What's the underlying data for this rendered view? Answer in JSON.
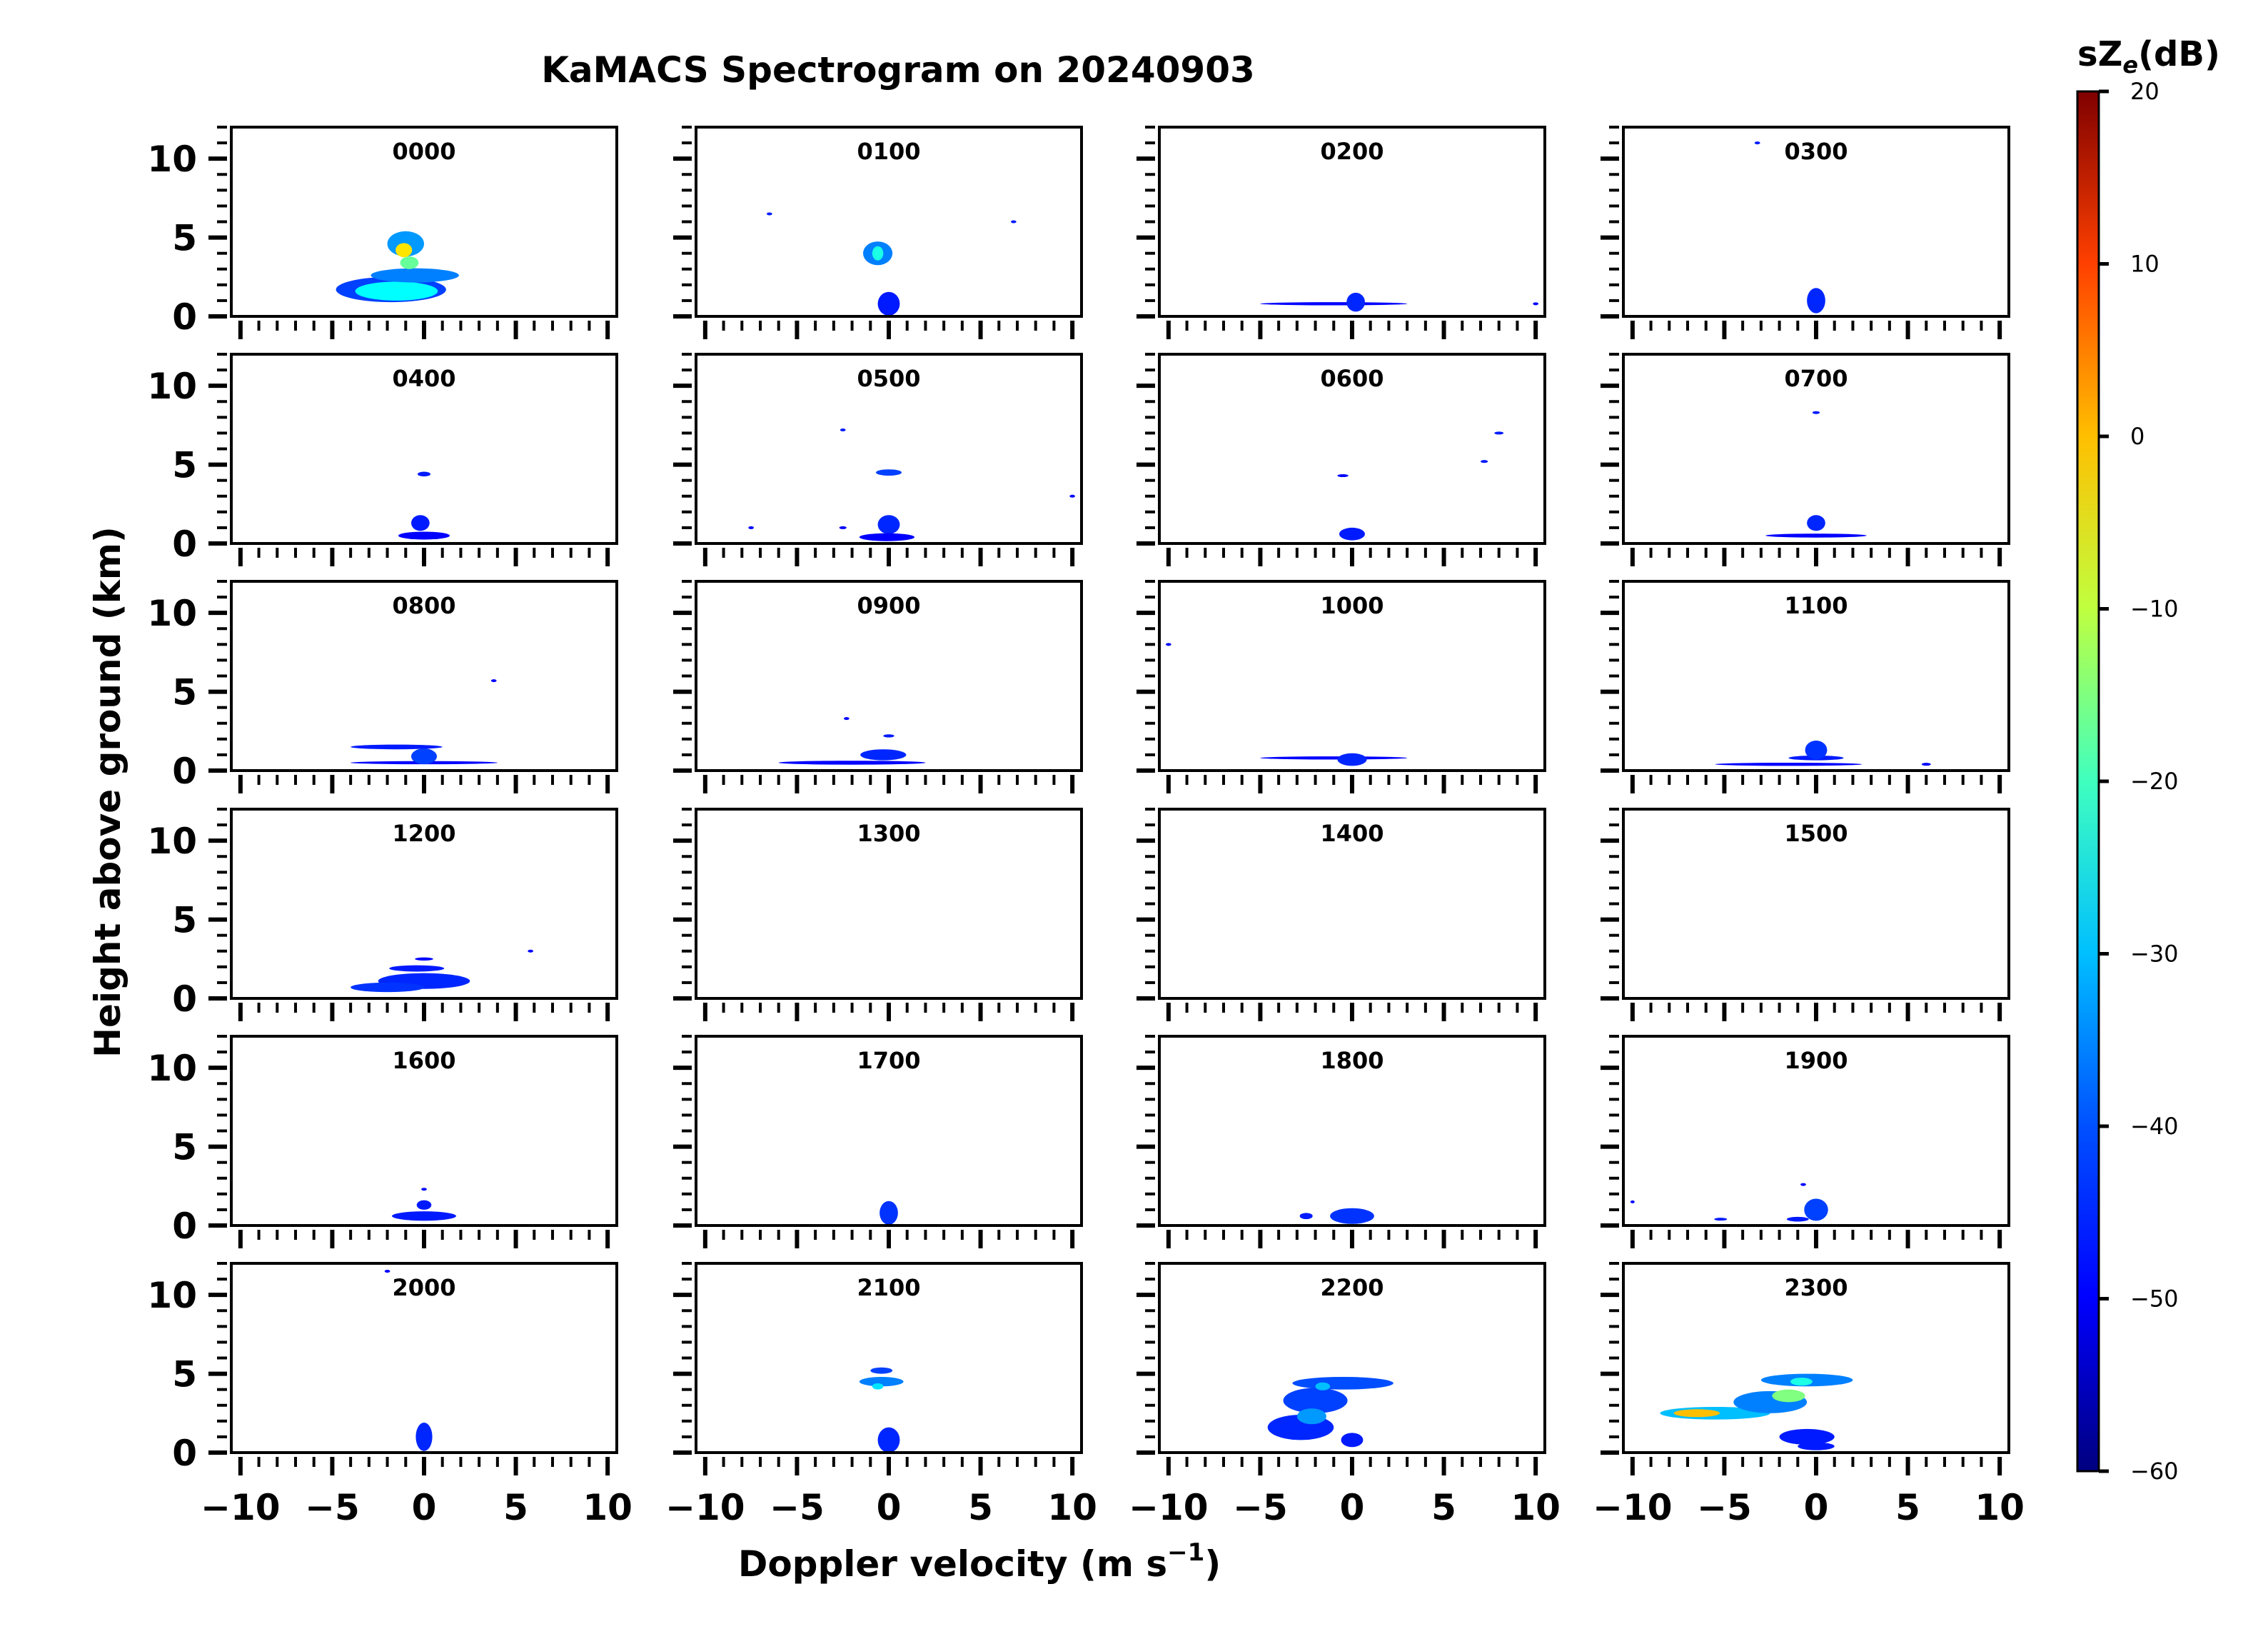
{
  "chart_data": {
    "type": "heatmap",
    "title": "KaMACS Spectrogram on 20240903",
    "xlabel": "Doppler velocity (m s",
    "xlabel_sup": "−1",
    "xlabel_close": ")",
    "ylabel": "Height above ground (km)",
    "xlim": [
      -10.5,
      10.5
    ],
    "ylim": [
      0,
      12
    ],
    "x_ticks": [
      -10,
      -5,
      0,
      5,
      10
    ],
    "x_tick_labels": [
      "−10",
      "−5",
      "0",
      "5",
      "10"
    ],
    "y_ticks": [
      0,
      5,
      10
    ],
    "y_tick_labels": [
      "0",
      "5",
      "10"
    ],
    "colorbar": {
      "label_prefix": "sZ",
      "label_sub": "e",
      "label_suffix": "(dB)",
      "range": [
        -60,
        20
      ],
      "ticks": [
        20,
        10,
        0,
        -10,
        -20,
        -30,
        -40,
        -50,
        -60
      ],
      "tick_labels": [
        "20",
        "10",
        "0",
        "−10",
        "−20",
        "−30",
        "−40",
        "−50",
        "−60"
      ],
      "colormap": "jet",
      "colors": [
        "#00007f",
        "#0000ff",
        "#007fff",
        "#00ffff",
        "#7fff7f",
        "#ffff00",
        "#ff7f00",
        "#ff0000",
        "#7f0000"
      ]
    },
    "panels": [
      {
        "time": "0000",
        "blobs": [
          {
            "x": -1.8,
            "y": 1.7,
            "w": 6.0,
            "h": 1.6,
            "dbz": -45
          },
          {
            "x": -1.5,
            "y": 1.6,
            "w": 4.5,
            "h": 1.2,
            "dbz": -30
          },
          {
            "x": -0.5,
            "y": 2.6,
            "w": 4.8,
            "h": 0.9,
            "dbz": -40
          },
          {
            "x": -1.0,
            "y": 4.6,
            "w": 2.0,
            "h": 1.6,
            "dbz": -38
          },
          {
            "x": -1.1,
            "y": 4.2,
            "w": 0.9,
            "h": 0.9,
            "dbz": -8
          },
          {
            "x": -0.8,
            "y": 3.4,
            "w": 1.0,
            "h": 0.8,
            "dbz": -22
          }
        ]
      },
      {
        "time": "0100",
        "blobs": [
          {
            "x": -0.6,
            "y": 4.0,
            "w": 1.6,
            "h": 1.5,
            "dbz": -40
          },
          {
            "x": -0.6,
            "y": 4.0,
            "w": 0.6,
            "h": 0.9,
            "dbz": -28
          },
          {
            "x": 0.0,
            "y": 0.8,
            "w": 1.2,
            "h": 1.5,
            "dbz": -48
          },
          {
            "x": -6.5,
            "y": 6.5,
            "w": 0.3,
            "h": 0.12,
            "dbz": -48
          },
          {
            "x": 6.8,
            "y": 6.0,
            "w": 0.3,
            "h": 0.12,
            "dbz": -48
          }
        ]
      },
      {
        "time": "0200",
        "blobs": [
          {
            "x": -1.0,
            "y": 0.8,
            "w": 8.0,
            "h": 0.2,
            "dbz": -50
          },
          {
            "x": 0.2,
            "y": 0.9,
            "w": 1.0,
            "h": 1.2,
            "dbz": -47
          },
          {
            "x": 10.0,
            "y": 0.8,
            "w": 0.3,
            "h": 0.15,
            "dbz": -50
          }
        ]
      },
      {
        "time": "0300",
        "blobs": [
          {
            "x": 0.0,
            "y": 1.0,
            "w": 1.0,
            "h": 1.6,
            "dbz": -47
          },
          {
            "x": -3.2,
            "y": 11.0,
            "w": 0.3,
            "h": 0.15,
            "dbz": -48
          }
        ]
      },
      {
        "time": "0400",
        "blobs": [
          {
            "x": 0.0,
            "y": 4.4,
            "w": 0.7,
            "h": 0.3,
            "dbz": -48
          },
          {
            "x": -0.2,
            "y": 1.3,
            "w": 1.0,
            "h": 1.0,
            "dbz": -48
          },
          {
            "x": 0.0,
            "y": 0.5,
            "w": 2.8,
            "h": 0.5,
            "dbz": -50
          }
        ]
      },
      {
        "time": "0500",
        "blobs": [
          {
            "x": 0.0,
            "y": 4.5,
            "w": 1.4,
            "h": 0.4,
            "dbz": -45
          },
          {
            "x": -2.5,
            "y": 7.2,
            "w": 0.3,
            "h": 0.12,
            "dbz": -48
          },
          {
            "x": 0.0,
            "y": 1.2,
            "w": 1.2,
            "h": 1.2,
            "dbz": -47
          },
          {
            "x": -0.1,
            "y": 0.4,
            "w": 3.0,
            "h": 0.5,
            "dbz": -50
          },
          {
            "x": -7.5,
            "y": 1.0,
            "w": 0.3,
            "h": 0.12,
            "dbz": -50
          },
          {
            "x": 10.0,
            "y": 3.0,
            "w": 0.3,
            "h": 0.12,
            "dbz": -50
          },
          {
            "x": -2.5,
            "y": 1.0,
            "w": 0.4,
            "h": 0.12,
            "dbz": -50
          }
        ]
      },
      {
        "time": "0600",
        "blobs": [
          {
            "x": 0.0,
            "y": 0.6,
            "w": 1.4,
            "h": 0.8,
            "dbz": -48
          },
          {
            "x": 8.0,
            "y": 7.0,
            "w": 0.5,
            "h": 0.15,
            "dbz": -48
          },
          {
            "x": 7.2,
            "y": 5.2,
            "w": 0.4,
            "h": 0.15,
            "dbz": -48
          },
          {
            "x": -0.5,
            "y": 4.3,
            "w": 0.6,
            "h": 0.12,
            "dbz": -50
          }
        ]
      },
      {
        "time": "0700",
        "blobs": [
          {
            "x": 0.0,
            "y": 8.3,
            "w": 0.4,
            "h": 0.15,
            "dbz": -48
          },
          {
            "x": 0.0,
            "y": 1.3,
            "w": 1.0,
            "h": 1.0,
            "dbz": -47
          },
          {
            "x": 0.0,
            "y": 0.5,
            "w": 5.5,
            "h": 0.25,
            "dbz": -50
          }
        ]
      },
      {
        "time": "0800",
        "blobs": [
          {
            "x": -1.5,
            "y": 1.5,
            "w": 5.0,
            "h": 0.3,
            "dbz": -48
          },
          {
            "x": 0.0,
            "y": 0.5,
            "w": 8.0,
            "h": 0.2,
            "dbz": -50
          },
          {
            "x": 0.0,
            "y": 0.9,
            "w": 1.4,
            "h": 1.0,
            "dbz": -45
          },
          {
            "x": 3.8,
            "y": 5.7,
            "w": 0.3,
            "h": 0.12,
            "dbz": -50
          }
        ]
      },
      {
        "time": "0900",
        "blobs": [
          {
            "x": -2.0,
            "y": 0.5,
            "w": 8.0,
            "h": 0.25,
            "dbz": -50
          },
          {
            "x": -0.3,
            "y": 1.0,
            "w": 2.5,
            "h": 0.7,
            "dbz": -47
          },
          {
            "x": 0.0,
            "y": 2.2,
            "w": 0.6,
            "h": 0.2,
            "dbz": -48
          },
          {
            "x": -2.3,
            "y": 3.3,
            "w": 0.3,
            "h": 0.12,
            "dbz": -50
          }
        ]
      },
      {
        "time": "1000",
        "blobs": [
          {
            "x": -1.0,
            "y": 0.8,
            "w": 8.0,
            "h": 0.2,
            "dbz": -50
          },
          {
            "x": 0.0,
            "y": 0.7,
            "w": 1.6,
            "h": 0.8,
            "dbz": -47
          },
          {
            "x": -10.0,
            "y": 8.0,
            "w": 0.3,
            "h": 0.12,
            "dbz": -50
          }
        ]
      },
      {
        "time": "1100",
        "blobs": [
          {
            "x": -1.5,
            "y": 0.4,
            "w": 8.0,
            "h": 0.2,
            "dbz": -50
          },
          {
            "x": 0.0,
            "y": 0.8,
            "w": 3.0,
            "h": 0.3,
            "dbz": -48
          },
          {
            "x": 0.0,
            "y": 1.3,
            "w": 1.2,
            "h": 1.2,
            "dbz": -46
          },
          {
            "x": 6.0,
            "y": 0.4,
            "w": 0.5,
            "h": 0.12,
            "dbz": -50
          }
        ]
      },
      {
        "time": "1200",
        "blobs": [
          {
            "x": 0.0,
            "y": 1.1,
            "w": 5.0,
            "h": 1.0,
            "dbz": -47
          },
          {
            "x": -2.0,
            "y": 0.7,
            "w": 4.0,
            "h": 0.6,
            "dbz": -46
          },
          {
            "x": -0.4,
            "y": 1.9,
            "w": 3.0,
            "h": 0.4,
            "dbz": -48
          },
          {
            "x": 0.0,
            "y": 2.5,
            "w": 1.0,
            "h": 0.2,
            "dbz": -50
          },
          {
            "x": 5.8,
            "y": 3.0,
            "w": 0.3,
            "h": 0.12,
            "dbz": -50
          }
        ]
      },
      {
        "time": "1300",
        "blobs": []
      },
      {
        "time": "1400",
        "blobs": []
      },
      {
        "time": "1500",
        "blobs": []
      },
      {
        "time": "1600",
        "blobs": [
          {
            "x": 0.0,
            "y": 0.6,
            "w": 3.5,
            "h": 0.6,
            "dbz": -48
          },
          {
            "x": 0.0,
            "y": 1.3,
            "w": 0.8,
            "h": 0.6,
            "dbz": -48
          },
          {
            "x": 0.0,
            "y": 2.3,
            "w": 0.3,
            "h": 0.12,
            "dbz": -50
          }
        ]
      },
      {
        "time": "1700",
        "blobs": [
          {
            "x": 0.0,
            "y": 0.8,
            "w": 1.0,
            "h": 1.5,
            "dbz": -46
          }
        ]
      },
      {
        "time": "1800",
        "blobs": [
          {
            "x": 0.0,
            "y": 0.6,
            "w": 2.4,
            "h": 1.0,
            "dbz": -46
          },
          {
            "x": -2.5,
            "y": 0.6,
            "w": 0.7,
            "h": 0.4,
            "dbz": -48
          }
        ]
      },
      {
        "time": "1900",
        "blobs": [
          {
            "x": 0.0,
            "y": 1.0,
            "w": 1.3,
            "h": 1.4,
            "dbz": -45
          },
          {
            "x": -1.0,
            "y": 0.4,
            "w": 1.2,
            "h": 0.3,
            "dbz": -48
          },
          {
            "x": -5.2,
            "y": 0.4,
            "w": 0.7,
            "h": 0.15,
            "dbz": -48
          },
          {
            "x": -10.0,
            "y": 1.5,
            "w": 0.2,
            "h": 0.15,
            "dbz": -50
          },
          {
            "x": -0.7,
            "y": 2.6,
            "w": 0.3,
            "h": 0.12,
            "dbz": -50
          }
        ]
      },
      {
        "time": "2000",
        "blobs": [
          {
            "x": -2.0,
            "y": 11.5,
            "w": 0.3,
            "h": 0.12,
            "dbz": -50
          },
          {
            "x": 0.0,
            "y": 1.0,
            "w": 0.9,
            "h": 1.8,
            "dbz": -47
          }
        ]
      },
      {
        "time": "2100",
        "blobs": [
          {
            "x": -0.4,
            "y": 4.5,
            "w": 2.4,
            "h": 0.6,
            "dbz": -40
          },
          {
            "x": -0.6,
            "y": 4.2,
            "w": 0.6,
            "h": 0.4,
            "dbz": -32
          },
          {
            "x": -0.4,
            "y": 5.2,
            "w": 1.2,
            "h": 0.4,
            "dbz": -45
          },
          {
            "x": 0.0,
            "y": 0.8,
            "w": 1.2,
            "h": 1.6,
            "dbz": -47
          }
        ]
      },
      {
        "time": "2200",
        "blobs": [
          {
            "x": -0.5,
            "y": 4.4,
            "w": 5.5,
            "h": 0.8,
            "dbz": -44
          },
          {
            "x": -2.0,
            "y": 3.3,
            "w": 3.5,
            "h": 1.6,
            "dbz": -45
          },
          {
            "x": -2.8,
            "y": 1.6,
            "w": 3.6,
            "h": 1.6,
            "dbz": -47
          },
          {
            "x": -2.2,
            "y": 2.3,
            "w": 1.6,
            "h": 1.0,
            "dbz": -38
          },
          {
            "x": -1.6,
            "y": 4.2,
            "w": 0.8,
            "h": 0.5,
            "dbz": -35
          },
          {
            "x": 0.0,
            "y": 0.8,
            "w": 1.2,
            "h": 0.9,
            "dbz": -48
          }
        ]
      },
      {
        "time": "2300",
        "blobs": [
          {
            "x": -5.5,
            "y": 2.5,
            "w": 6.0,
            "h": 0.8,
            "dbz": -35
          },
          {
            "x": -6.5,
            "y": 2.5,
            "w": 2.5,
            "h": 0.5,
            "dbz": -5
          },
          {
            "x": -2.5,
            "y": 3.2,
            "w": 4.0,
            "h": 1.4,
            "dbz": -40
          },
          {
            "x": -1.5,
            "y": 3.6,
            "w": 1.8,
            "h": 0.8,
            "dbz": -20
          },
          {
            "x": -0.5,
            "y": 4.6,
            "w": 5.0,
            "h": 0.8,
            "dbz": -40
          },
          {
            "x": -0.8,
            "y": 4.5,
            "w": 1.2,
            "h": 0.5,
            "dbz": -28
          },
          {
            "x": -0.5,
            "y": 1.0,
            "w": 3.0,
            "h": 1.0,
            "dbz": -48
          },
          {
            "x": 0.0,
            "y": 0.4,
            "w": 2.0,
            "h": 0.5,
            "dbz": -48
          }
        ]
      }
    ]
  }
}
